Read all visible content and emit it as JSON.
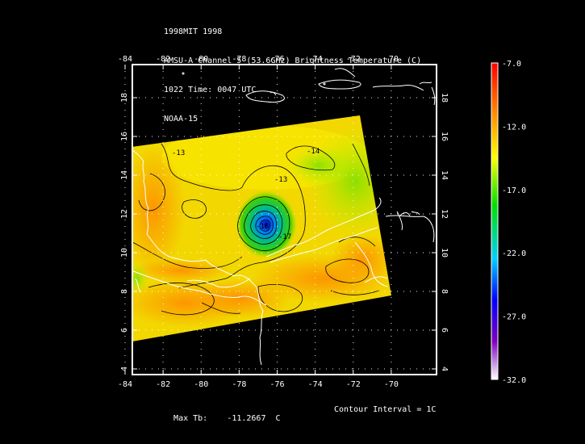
{
  "header": {
    "line1": "1998MIT 1998",
    "line2": "AMSU-A Channel 5 (53.6GHz) Brightness Temperature (C)",
    "line3": "1022 Time: 0047 UTC",
    "line4": "NOAA-15"
  },
  "map": {
    "lon_ticks": [
      "-84",
      "-82",
      "-80",
      "-78",
      "-76",
      "-74",
      "-72",
      "-70"
    ],
    "lat_ticks": [
      "4",
      "6",
      "8",
      "10",
      "12",
      "14",
      "16",
      "18"
    ],
    "lon_range": [
      -84,
      -68
    ],
    "lat_range": [
      4,
      20
    ],
    "contour_labels": [
      "-13",
      "-14",
      "-13",
      "-17",
      "-16"
    ]
  },
  "colorbar": {
    "labels": [
      "-7.0",
      "-12.0",
      "-17.0",
      "-22.0",
      "-27.0",
      "-32.0"
    ],
    "colors": [
      "#ff0000",
      "#ff8c00",
      "#ffff00",
      "#00e000",
      "#00d0ff",
      "#0000ff",
      "#8000c0",
      "#ffffff"
    ]
  },
  "footer": {
    "max_label": "Max Tb:",
    "max_value": "-11.2667",
    "max_unit": "C",
    "contour_interval": "Contour Interval = 1C"
  }
}
